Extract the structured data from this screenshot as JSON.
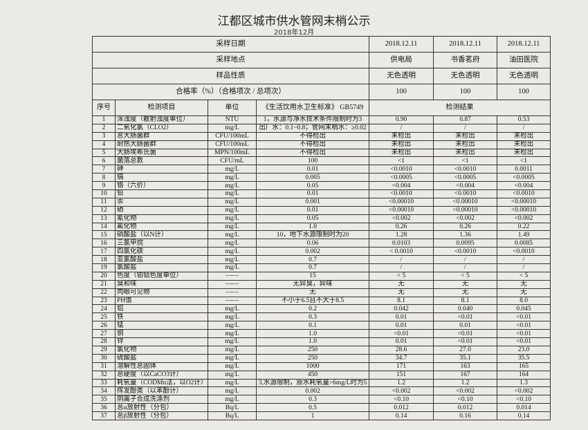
{
  "header": {
    "title": "江都区城市供水管网末梢公示",
    "subtitle": "2018年12月"
  },
  "table": {
    "meta_rows": [
      [
        "采样日期",
        "2018.12.11",
        "2018.12.11",
        "2018.12.11"
      ],
      [
        "采样地点",
        "供电局",
        "书香茗府",
        "油田医院"
      ],
      [
        "样品性质",
        "无色透明",
        "无色透明",
        "无色透明"
      ],
      [
        "合格率（%）（合格项次 / 总项次）",
        "100",
        "100",
        "100"
      ]
    ],
    "columns": [
      "序号",
      "检测项目",
      "单位",
      "《生活饮用水卫生标准》 GB5749",
      "检测结果"
    ],
    "rows": [
      [
        "1",
        "浑浊度（散射浊度单位）",
        "NTU",
        "1，水源与净水技术条件限制时为3",
        "0.90",
        "0.87",
        "0.53"
      ],
      [
        "2",
        "二氧化氯（CLO2）",
        "mg/L",
        "出厂水：0.1~0.8；管网末梢水：≥0.02",
        "/",
        "/",
        "/"
      ],
      [
        "3",
        "总大肠菌群",
        "CFU/100mL",
        "不得检出",
        "未检出",
        "未检出",
        "未检出"
      ],
      [
        "4",
        "耐热大肠菌群",
        "CFU/100mL",
        "不得检出",
        "未检出",
        "未检出",
        "未检出"
      ],
      [
        "5",
        "大肠埃希氏菌",
        "MPN/100mL",
        "不得检出",
        "未检出",
        "未检出",
        "未检出"
      ],
      [
        "6",
        "菌落总数",
        "CFU/mL",
        "100",
        "<1",
        "<1",
        "<1"
      ],
      [
        "7",
        "砷",
        "mg/L",
        "0.01",
        "<0.0010",
        "<0.0010",
        "0.0011"
      ],
      [
        "8",
        "镉",
        "mg/L",
        "0.005",
        "<0.0005",
        "<0.0005",
        "<0.0005"
      ],
      [
        "9",
        "铬（六价）",
        "mg/L",
        "0.05",
        "<0.004",
        "<0.004",
        "<0.004"
      ],
      [
        "10",
        "铅",
        "mg/L",
        "0.01",
        "<0.0010",
        "<0.0010",
        "<0.0010"
      ],
      [
        "11",
        "汞",
        "mg/L",
        "0.001",
        "<0.00010",
        "<0.00010",
        "<0.00010"
      ],
      [
        "12",
        "硒",
        "mg/L",
        "0.01",
        "<0.00010",
        "<0.00010",
        "<0.00010"
      ],
      [
        "13",
        "氰化物",
        "mg/L",
        "0.05",
        "<0.002",
        "<0.002",
        "<0.002"
      ],
      [
        "14",
        "氟化物",
        "mg/L",
        "1.0",
        "0.26",
        "0.26",
        "0.22"
      ],
      [
        "15",
        "硝酸盐（以N计）",
        "mg/L",
        "10，地下水源限制时为20",
        "1.28",
        "1.36",
        "1.49"
      ],
      [
        "16",
        "三氯甲烷",
        "mg/L",
        "0.06",
        "0.0103",
        "0.0095",
        "0.0085"
      ],
      [
        "17",
        "四氯化碳",
        "mg/L",
        "0.002",
        "< 0.0010",
        "<0.0010",
        "<0.0010"
      ],
      [
        "18",
        "亚氯酸盐",
        "mg/L",
        "0.7",
        "/",
        "/",
        "/"
      ],
      [
        "19",
        "氯酸盐",
        "mg/L",
        "0.7",
        "/",
        "/",
        "/"
      ],
      [
        "20",
        "色度（铂钴色度单位）",
        "——",
        "15",
        "< 5",
        "< 5",
        "< 5"
      ],
      [
        "21",
        "臭和味",
        "——",
        "无异臭，异味",
        "无",
        "无",
        "无"
      ],
      [
        "22",
        "肉眼可见物",
        "——",
        "无",
        "无",
        "无",
        "无"
      ],
      [
        "23",
        "PH值",
        "——",
        "不小于6.5且不大于8.5",
        "8.1",
        "8.1",
        "8.0"
      ],
      [
        "24",
        "铝",
        "mg/L",
        "0.2",
        "0.042",
        "0.040",
        "0.045"
      ],
      [
        "25",
        "铁",
        "mg/L",
        "0.3",
        "0.01",
        "<0.01",
        "<0.01"
      ],
      [
        "26",
        "锰",
        "mg/L",
        "0.1",
        "0.01",
        "0.01",
        "<0.01"
      ],
      [
        "27",
        "铜",
        "mg/L",
        "1.0",
        "<0.01",
        "<0.01",
        "<0.01"
      ],
      [
        "28",
        "锌",
        "mg/L",
        "1.0",
        "0.01",
        "<0.01",
        "<0.01"
      ],
      [
        "29",
        "氯化物",
        "mg/L",
        "250",
        "28.6",
        "27.0",
        "23.0"
      ],
      [
        "30",
        "硫酸盐",
        "mg/L",
        "250",
        "34.7",
        "35.1",
        "35.5"
      ],
      [
        "31",
        "溶解性总固体",
        "mg/L",
        "1000",
        "171",
        "163",
        "165"
      ],
      [
        "32",
        "总硬度（以CaCO3计）",
        "mg/L",
        "450",
        "151",
        "167",
        "164"
      ],
      [
        "33",
        "耗氧量（CODMn法，以O2计）",
        "mg/L",
        "3,水源限制，原水耗氧量>6mg/L时为5",
        "1.2",
        "1.2",
        "1.3"
      ],
      [
        "34",
        "挥发酚类（以苯酚计）",
        "mg/L",
        "0.002",
        "<0.002",
        "<0.002",
        "<0.002"
      ],
      [
        "35",
        "阴离子合成洗涤剂",
        "mg/L",
        "0.3",
        "<0.10",
        "<0.10",
        "<0.10"
      ],
      [
        "36",
        "总α放射性（分包）",
        "Bq/L",
        "0.5",
        "0.012",
        "0.012",
        "0.014"
      ],
      [
        "37",
        "总β放射性（分包）",
        "Bq/L",
        "1",
        "0.14",
        "0.16",
        "0.14"
      ]
    ]
  }
}
